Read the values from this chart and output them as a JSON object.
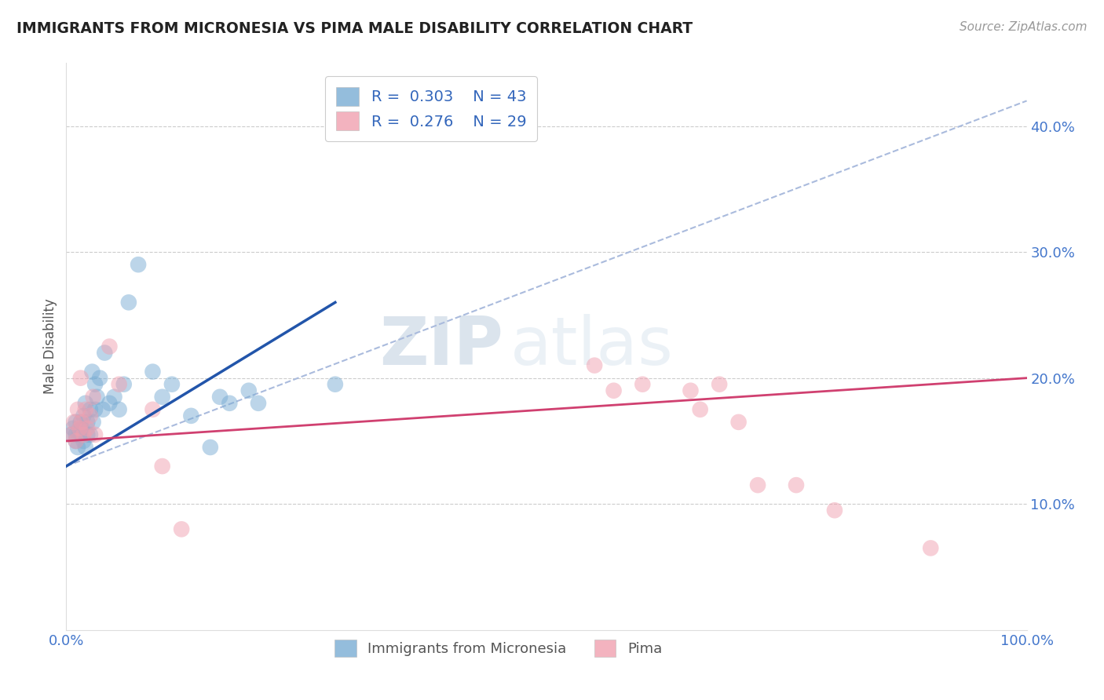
{
  "title": "IMMIGRANTS FROM MICRONESIA VS PIMA MALE DISABILITY CORRELATION CHART",
  "source": "Source: ZipAtlas.com",
  "ylabel": "Male Disability",
  "xlim": [
    0,
    1.0
  ],
  "ylim": [
    0,
    0.45
  ],
  "xticks": [
    0.0,
    0.25,
    0.5,
    0.75,
    1.0
  ],
  "xtick_labels": [
    "0.0%",
    "",
    "",
    "",
    "100.0%"
  ],
  "yticks": [
    0.1,
    0.2,
    0.3,
    0.4
  ],
  "ytick_labels": [
    "10.0%",
    "20.0%",
    "30.0%",
    "40.0%"
  ],
  "grid_color": "#cccccc",
  "background_color": "#ffffff",
  "blue_color": "#7aadd4",
  "pink_color": "#f0a0b0",
  "blue_line_color": "#2255aa",
  "pink_line_color": "#d04070",
  "dashed_line_color": "#aabbdd",
  "legend_R_blue": "0.303",
  "legend_N_blue": "43",
  "legend_R_pink": "0.276",
  "legend_N_pink": "29",
  "watermark_zip": "ZIP",
  "watermark_atlas": "atlas",
  "blue_scatter_x": [
    0.005,
    0.007,
    0.01,
    0.01,
    0.01,
    0.012,
    0.013,
    0.014,
    0.015,
    0.015,
    0.016,
    0.018,
    0.018,
    0.02,
    0.02,
    0.022,
    0.022,
    0.025,
    0.025,
    0.027,
    0.028,
    0.03,
    0.03,
    0.032,
    0.035,
    0.038,
    0.04,
    0.045,
    0.05,
    0.055,
    0.06,
    0.065,
    0.075,
    0.09,
    0.1,
    0.11,
    0.13,
    0.15,
    0.16,
    0.17,
    0.19,
    0.2,
    0.28
  ],
  "blue_scatter_y": [
    0.155,
    0.16,
    0.15,
    0.155,
    0.165,
    0.145,
    0.155,
    0.16,
    0.155,
    0.165,
    0.16,
    0.15,
    0.17,
    0.145,
    0.18,
    0.155,
    0.165,
    0.155,
    0.175,
    0.205,
    0.165,
    0.175,
    0.195,
    0.185,
    0.2,
    0.175,
    0.22,
    0.18,
    0.185,
    0.175,
    0.195,
    0.26,
    0.29,
    0.205,
    0.185,
    0.195,
    0.17,
    0.145,
    0.185,
    0.18,
    0.19,
    0.18,
    0.195
  ],
  "pink_scatter_x": [
    0.005,
    0.008,
    0.01,
    0.012,
    0.014,
    0.015,
    0.016,
    0.018,
    0.02,
    0.022,
    0.025,
    0.028,
    0.03,
    0.045,
    0.055,
    0.09,
    0.1,
    0.12,
    0.55,
    0.57,
    0.6,
    0.65,
    0.66,
    0.68,
    0.7,
    0.72,
    0.76,
    0.8,
    0.9
  ],
  "pink_scatter_y": [
    0.155,
    0.165,
    0.15,
    0.175,
    0.16,
    0.2,
    0.165,
    0.155,
    0.175,
    0.16,
    0.17,
    0.185,
    0.155,
    0.225,
    0.195,
    0.175,
    0.13,
    0.08,
    0.21,
    0.19,
    0.195,
    0.19,
    0.175,
    0.195,
    0.165,
    0.115,
    0.115,
    0.095,
    0.065
  ],
  "blue_trend_x": [
    0.0,
    0.28
  ],
  "blue_trend_y_start": 0.13,
  "blue_trend_y_end": 0.26,
  "pink_trend_x": [
    0.0,
    1.0
  ],
  "pink_trend_y_start": 0.15,
  "pink_trend_y_end": 0.2,
  "dashed_trend_x": [
    0.0,
    1.0
  ],
  "dashed_trend_y_start": 0.13,
  "dashed_trend_y_end": 0.42
}
